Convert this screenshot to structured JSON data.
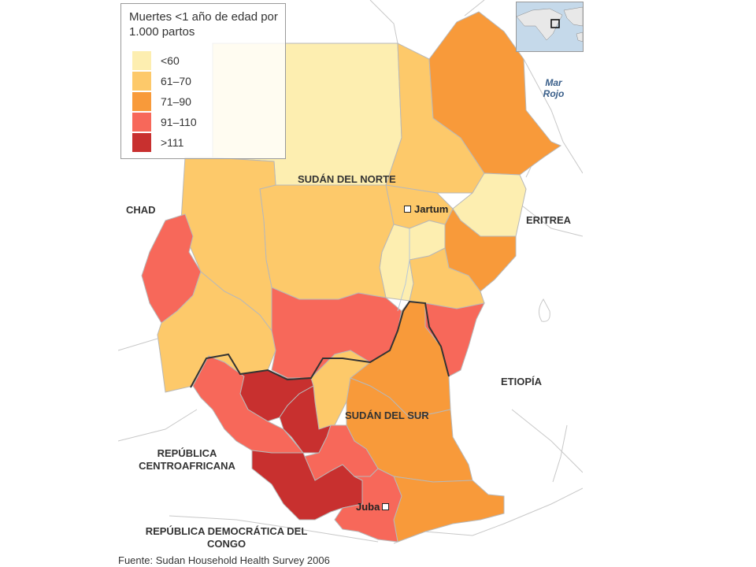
{
  "legend": {
    "title": "Muertes <1 año de edad por 1.000 partos",
    "items": [
      {
        "label": "<60",
        "color": "#fdeeb0"
      },
      {
        "label": "61–70",
        "color": "#fdc96a"
      },
      {
        "label": "71–90",
        "color": "#f89a3a"
      },
      {
        "label": "91–110",
        "color": "#f7685a"
      },
      {
        "label": ">111",
        "color": "#c8302f"
      }
    ]
  },
  "labels": {
    "sudan_norte": "SUDÁN DEL NORTE",
    "sudan_sur": "SUDÁN DEL SUR",
    "chad": "CHAD",
    "eritrea": "ERITREA",
    "etiopia": "ETIOPÍA",
    "rca": "REPÚBLICA CENTROAFRICANA",
    "rdc": "REPÚBLICA DEMOCRÁTICA DEL CONGO",
    "mar_rojo": "Mar Rojo"
  },
  "cities": {
    "jartum": "Jartum",
    "juba": "Juba"
  },
  "source": "Fuente: Sudan Household Health Survey 2006",
  "colors": {
    "lt60": "#fdeeb0",
    "c61_70": "#fdc96a",
    "c71_90": "#f89a3a",
    "c91_110": "#f7685a",
    "gt111": "#c8302f",
    "border": "#b8b8b8",
    "national_border": "#333333"
  }
}
